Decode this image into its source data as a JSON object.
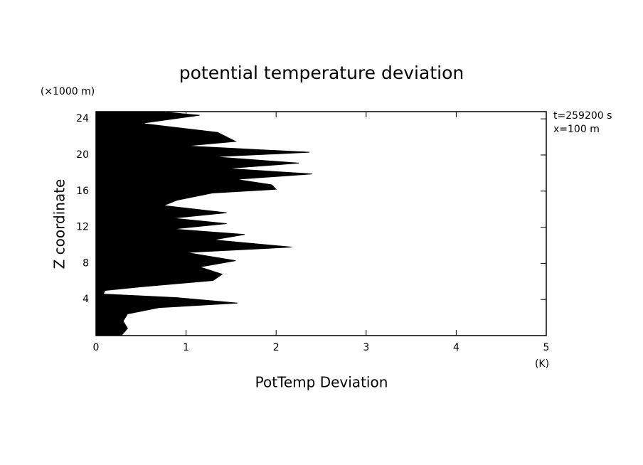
{
  "chart_data": {
    "type": "area",
    "orientation": "horizontal",
    "title": "potential temperature deviation",
    "y_unit": "(×1000 m)",
    "y_label": "Z coordinate",
    "x_label": "PotTemp Deviation",
    "x_unit": "(K)",
    "annotations": [
      "t=259200 s",
      "x=100 m"
    ],
    "color": "#000000",
    "z": [
      0,
      0.8,
      1.6,
      2.4,
      3.1,
      3.6,
      4.2,
      4.6,
      5.0,
      5.4,
      6.1,
      6.8,
      7.6,
      8.3,
      9.2,
      9.8,
      10.6,
      11.2,
      11.8,
      12.4,
      13.0,
      13.6,
      14.4,
      15.0,
      15.8,
      16.2,
      16.7,
      17.3,
      17.9,
      18.5,
      19.1,
      19.8,
      20.3,
      21.0,
      21.5,
      22.5,
      23.5,
      24.4,
      24.8
    ],
    "values": [
      0.28,
      0.35,
      0.3,
      0.35,
      0.7,
      1.57,
      0.9,
      0.08,
      0.1,
      0.5,
      1.3,
      1.4,
      1.15,
      1.55,
      1.0,
      2.17,
      1.3,
      1.65,
      0.85,
      1.45,
      0.85,
      1.45,
      0.75,
      0.9,
      1.3,
      2.0,
      1.95,
      1.55,
      2.4,
      1.45,
      2.25,
      1.3,
      2.37,
      1.0,
      1.55,
      1.35,
      0.5,
      1.15,
      0.7
    ],
    "xlim": [
      0,
      5
    ],
    "ylim": [
      0,
      24.8
    ],
    "xticks": [
      0,
      1,
      2,
      3,
      4,
      5
    ],
    "yticks": [
      4,
      8,
      12,
      16,
      20,
      24
    ]
  }
}
